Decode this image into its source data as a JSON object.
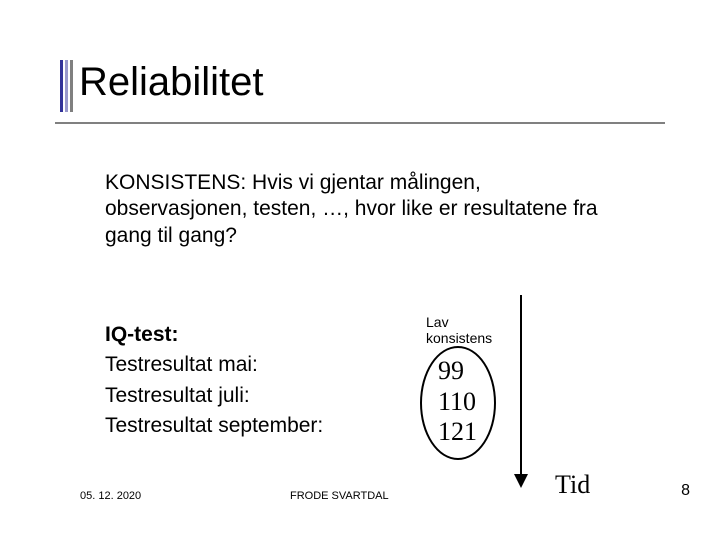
{
  "title": "Reliabilitet",
  "body": "KONSISTENS: Hvis vi gjentar målingen, observasjonen, testen, …, hvor like er resultatene fra gang til gang?",
  "iq": {
    "label": "IQ-test:",
    "rows": [
      "Testresultat mai:",
      "Testresultat juli:",
      "Testresultat september:"
    ],
    "values": [
      "99",
      "110",
      "121"
    ]
  },
  "lav_line1": "Lav",
  "lav_line2": "konsistens",
  "axis_label": "Tid",
  "footer": {
    "date": "05. 12. 2020",
    "author": "FRODE SVARTDAL",
    "page": "8"
  },
  "colors": {
    "accent_dark": "#333399",
    "accent_mid": "#9999cc",
    "accent_gray": "#808080",
    "text": "#000000",
    "background": "#ffffff"
  }
}
